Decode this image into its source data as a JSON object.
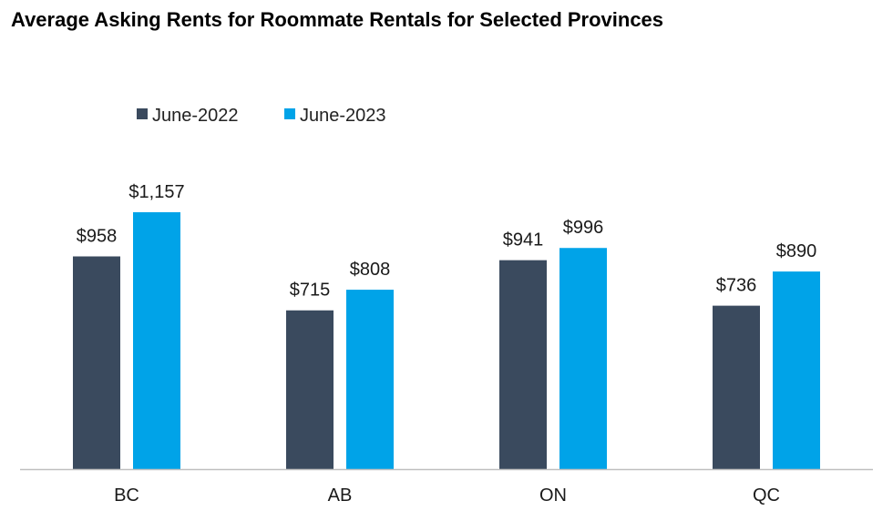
{
  "chart_data": {
    "type": "bar",
    "title": "Average Asking Rents for Roommate Rentals for Selected Provinces",
    "categories": [
      "BC",
      "AB",
      "ON",
      "QC"
    ],
    "series": [
      {
        "name": "June-2022",
        "color": "#3a4a5e",
        "values": [
          958,
          715,
          941,
          736
        ],
        "labels": [
          "$958",
          "$715",
          "$941",
          "$736"
        ]
      },
      {
        "name": "June-2023",
        "color": "#00a3e8",
        "values": [
          1157,
          808,
          996,
          890
        ],
        "labels": [
          "$1,157",
          "$808",
          "$996",
          "$890"
        ]
      }
    ],
    "xlabel": "",
    "ylabel": "",
    "ylim": [
      0,
      1157
    ],
    "grid": false,
    "legend_position": "top-left"
  }
}
